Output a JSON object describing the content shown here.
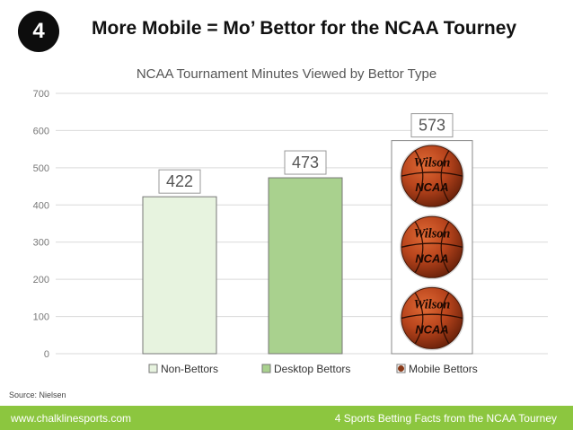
{
  "badge": "4",
  "headline": "More Mobile = Mo’ Bettor for the NCAA Tourney",
  "source": "Source: Nielsen",
  "footer": {
    "url": "www.chalklinesports.com",
    "caption": "4 Sports Betting Facts from the NCAA Tourney"
  },
  "chart_data": {
    "type": "bar",
    "title": "NCAA Tournament Minutes Viewed by Bettor Type",
    "categories": [
      "Non-Bettors",
      "Desktop Bettors",
      "Mobile Bettors"
    ],
    "values": [
      422,
      473,
      573
    ],
    "ylim": [
      0,
      700
    ],
    "yticks": [
      0,
      100,
      200,
      300,
      400,
      500,
      600,
      700
    ],
    "legend": [
      "Non-Bettors",
      "Desktop Bettors",
      "Mobile Bettors"
    ],
    "legend_position": "bottom",
    "colors": [
      "#e7f3df",
      "#a9d18e",
      "#ffffff"
    ],
    "grid": true
  },
  "icons": {
    "mobile_fill": "basketball-icon",
    "ball_brand": "Wilson",
    "ball_league": "NCAA"
  }
}
